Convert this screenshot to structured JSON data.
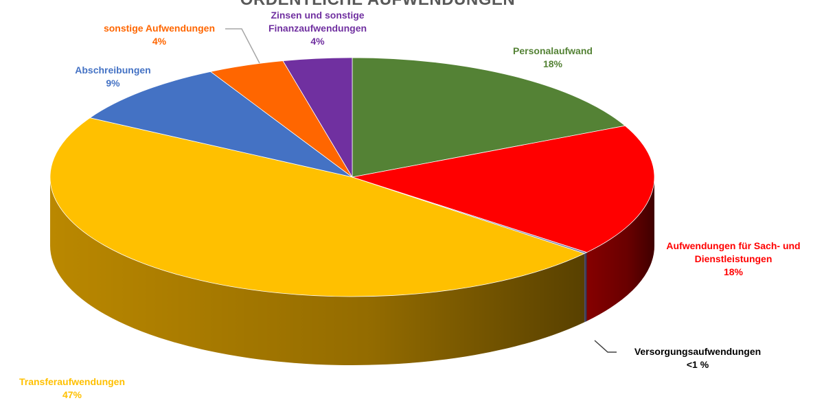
{
  "chart_data": {
    "type": "pie",
    "title": "ORDENTLICHE AUFWENDUNGEN",
    "slices": [
      {
        "name": "Personalaufwand",
        "label": "Personalaufwand",
        "pct_label": "18%",
        "value": 18,
        "color": "#548235",
        "side": "#3a5c24"
      },
      {
        "name": "Aufwendungen für Sach- und Dienstleistungen",
        "label_lines": [
          "Aufwendungen für Sach- und",
          "Dienstleistungen"
        ],
        "pct_label": "18%",
        "value": 18,
        "color": "#ff0000",
        "side": "#8c0000"
      },
      {
        "name": "Versorgungsaufwendungen",
        "label": "Versorgungsaufwendungen",
        "pct_label": "<1 %",
        "value": 0.2,
        "color": "#7f7fa8",
        "side": "#52527a"
      },
      {
        "name": "Transferaufwendungen",
        "label": "Transferaufwendungen",
        "pct_label": "47%",
        "value": 47.4,
        "color": "#ffc000",
        "side": "#c48f00"
      },
      {
        "name": "Abschreibungen",
        "label": "Abschreibungen",
        "pct_label": "9%",
        "value": 9,
        "color": "#4472c4",
        "side": "#2c4f8c"
      },
      {
        "name": "sonstige Aufwendungen",
        "label": "sonstige Aufwendungen",
        "pct_label": "4%",
        "value": 4.1,
        "color": "#ff6600",
        "side": "#b34700"
      },
      {
        "name": "Zinsen und sonstige Finanzaufwendungen",
        "label_lines": [
          "Zinsen und sonstige",
          "Finanzaufwendungen"
        ],
        "pct_label": "4%",
        "value": 3.7,
        "color": "#7030a0",
        "side": "#4a1f6b"
      }
    ],
    "label_colors": [
      "#548235",
      "#ff0000",
      "#000000",
      "#ffc000",
      "#4472c4",
      "#ff6600",
      "#7030a0"
    ]
  }
}
